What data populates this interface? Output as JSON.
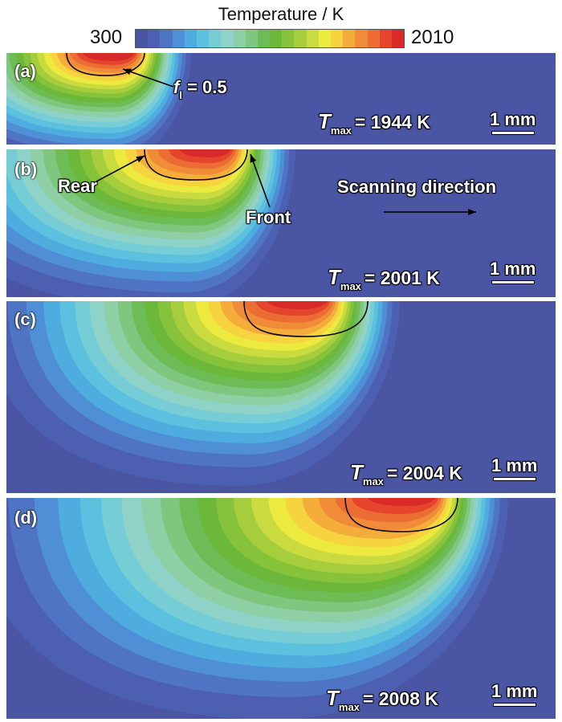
{
  "colorbar": {
    "title": "Temperature / K",
    "min_label": "300",
    "max_label": "2010",
    "min_value": 300,
    "max_value": 2010,
    "colors": [
      "#4a55a3",
      "#4d5fb0",
      "#4f74c4",
      "#4f8fd6",
      "#4facdf",
      "#5bc1df",
      "#77cdd6",
      "#8fd3c8",
      "#8fcfa6",
      "#7fc67f",
      "#6dbc55",
      "#6cb83a",
      "#86c23a",
      "#a6cd3c",
      "#c9db3f",
      "#ecea3f",
      "#f7d33f",
      "#f4ad3b",
      "#f08c38",
      "#ec6d33",
      "#e6452d",
      "#d92a27"
    ]
  },
  "panels": [
    {
      "label": "(a)",
      "tmax_symbol": "T",
      "tmax_sub": "max",
      "tmax_text": "= 1944 K",
      "scale_label": "1 mm"
    },
    {
      "label": "(b)",
      "tmax_symbol": "T",
      "tmax_sub": "max",
      "tmax_text": "= 2001 K",
      "scale_label": "1 mm"
    },
    {
      "label": "(c)",
      "tmax_symbol": "T",
      "tmax_sub": "max",
      "tmax_text": "= 2004 K",
      "scale_label": "1 mm"
    },
    {
      "label": "(d)",
      "tmax_symbol": "T",
      "tmax_sub": "max",
      "tmax_text": "= 2008 K",
      "scale_label": "1 mm"
    }
  ],
  "annotations": {
    "fl_symbol": "f",
    "fl_sub": "l",
    "fl_text": "= 0.5",
    "rear": "Rear",
    "front": "Front",
    "scanning": "Scanning direction"
  }
}
